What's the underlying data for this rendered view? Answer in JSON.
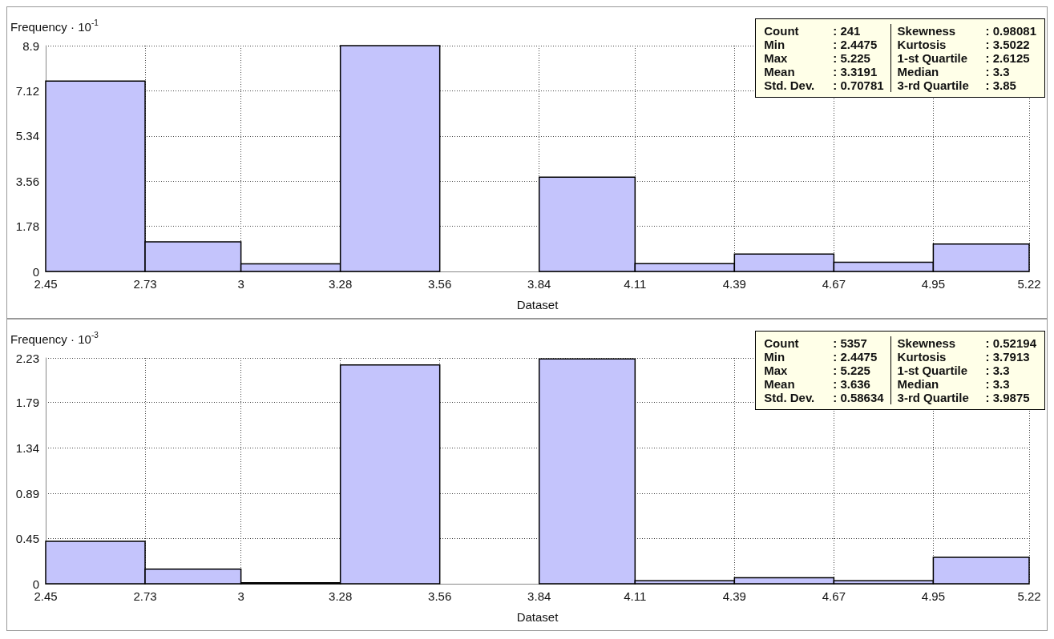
{
  "chart_data": [
    {
      "type": "histogram",
      "ylabel": "Frequency · 10$^{-1}$",
      "xlabel": "Dataset",
      "color": "#c4c4fc",
      "bins": [
        2.45,
        2.73,
        3,
        3.28,
        3.56,
        3.84,
        4.11,
        4.39,
        4.67,
        4.95,
        5.22
      ],
      "values": [
        7.5,
        1.17,
        0.3,
        8.9,
        0,
        3.72,
        0.31,
        0.69,
        0.36,
        1.08
      ],
      "xlim": [
        2.45,
        5.22
      ],
      "xticks": [
        2.45,
        2.73,
        3,
        3.28,
        3.56,
        3.84,
        4.11,
        4.39,
        4.67,
        4.95,
        5.22
      ],
      "ylim": [
        0,
        8.9
      ],
      "yticks": [
        0,
        1.78,
        3.56,
        5.34,
        7.12,
        8.9
      ],
      "grid": true,
      "annotations": [
        "Count : 241",
        "Min : 2.4475",
        "Max : 5.225",
        "Mean : 3.3191",
        "Std. Dev. : 0.70781",
        "Skewness : 0.98081",
        "Kurtosis : 3.5022",
        "1-st Quartile : 2.6125",
        "Median : 3.3",
        "3-rd Quartile : 3.85"
      ]
    },
    {
      "type": "histogram",
      "ylabel": "Frequency · 10$^{-3}$",
      "xlabel": "Dataset",
      "color": "#c4c4fc",
      "bins": [
        2.45,
        2.73,
        3,
        3.28,
        3.56,
        3.84,
        4.11,
        4.39,
        4.67,
        4.95,
        5.22
      ],
      "values": [
        0.42,
        0.145,
        0.01,
        2.16,
        0,
        2.22,
        0.03,
        0.06,
        0.03,
        0.26
      ],
      "xlim": [
        2.45,
        5.22
      ],
      "xticks": [
        2.45,
        2.73,
        3,
        3.28,
        3.56,
        3.84,
        4.11,
        4.39,
        4.67,
        4.95,
        5.22
      ],
      "ylim": [
        0,
        2.23
      ],
      "yticks": [
        0,
        0.45,
        0.89,
        1.34,
        1.79,
        2.23
      ],
      "grid": true,
      "annotations": [
        "Count : 5357",
        "Min : 2.4475",
        "Max : 5.225",
        "Mean : 3.636",
        "Std. Dev. : 0.58634",
        "Skewness : 0.52194",
        "Kurtosis : 3.7913",
        "1-st Quartile : 3.3",
        "Median : 3.3",
        "3-rd Quartile : 3.9875"
      ]
    }
  ]
}
